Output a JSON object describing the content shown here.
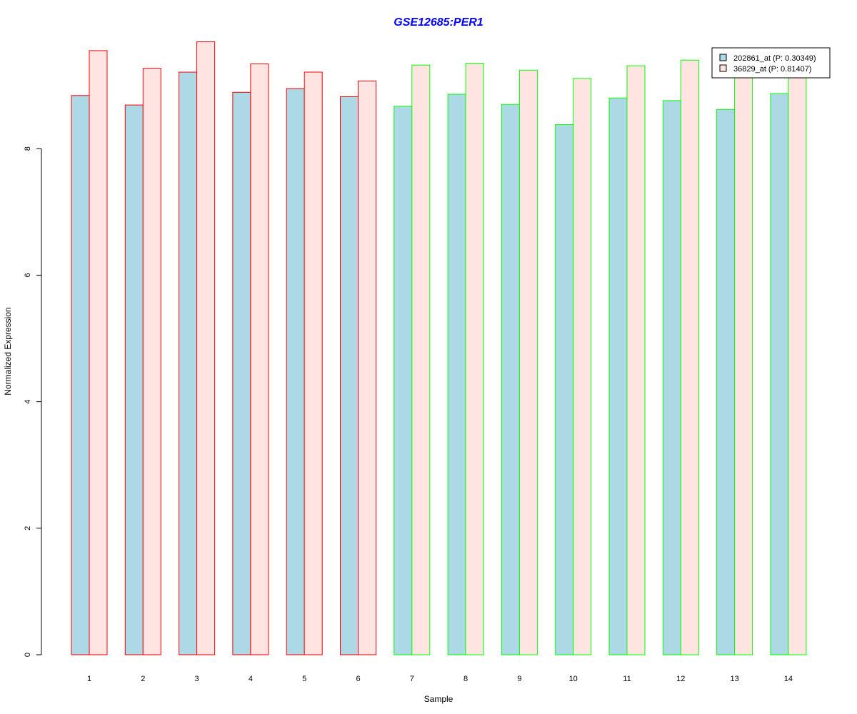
{
  "chart_data": {
    "type": "bar",
    "title": "GSE12685:PER1",
    "title_color": "#0000ff",
    "xlabel": "Sample",
    "ylabel": "Normalized Expression",
    "ylim": [
      0,
      10
    ],
    "yticks": [
      0,
      2,
      4,
      6,
      8
    ],
    "grid": false,
    "legend_position": "top-right",
    "categories": [
      "1",
      "2",
      "3",
      "4",
      "5",
      "6",
      "7",
      "8",
      "9",
      "10",
      "11",
      "12",
      "13",
      "14"
    ],
    "series": [
      {
        "name": "202861_at (P: 0.30349)",
        "fill": "#add8e6",
        "values": [
          8.84,
          8.69,
          9.21,
          8.89,
          8.95,
          8.82,
          8.67,
          8.86,
          8.7,
          8.38,
          8.8,
          8.76,
          8.62,
          8.87
        ]
      },
      {
        "name": "36829_at (P: 0.81407)",
        "fill": "#ffe4e1",
        "values": [
          9.55,
          9.27,
          9.69,
          9.34,
          9.21,
          9.07,
          9.32,
          9.35,
          9.24,
          9.11,
          9.31,
          9.4,
          9.2,
          9.22
        ]
      }
    ],
    "group_border_colors": [
      "#ff0000",
      "#ff0000",
      "#ff0000",
      "#ff0000",
      "#ff0000",
      "#ff0000",
      "#00ff00",
      "#00ff00",
      "#00ff00",
      "#00ff00",
      "#00ff00",
      "#00ff00",
      "#00ff00",
      "#00ff00"
    ]
  }
}
